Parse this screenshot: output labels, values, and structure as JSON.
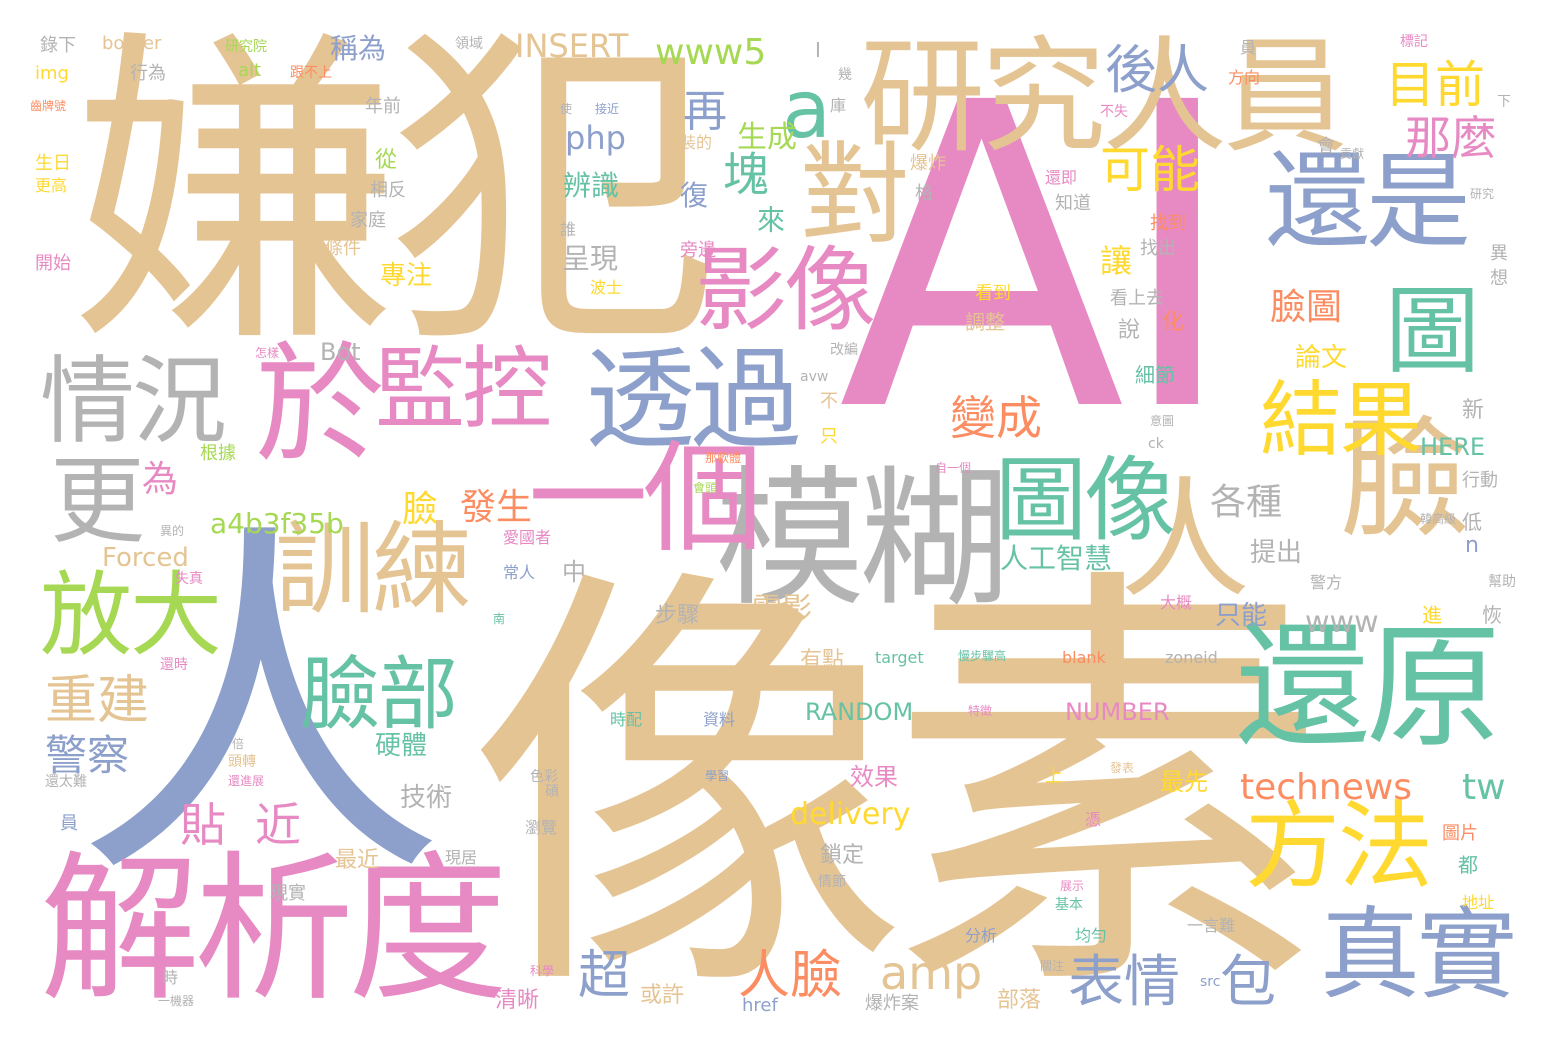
{
  "colors": {
    "background": "#ffffff",
    "tan": "#e5c494",
    "pink": "#e78ac3",
    "blue": "#8da0cb",
    "green": "#66c2a5",
    "lime": "#a6d854",
    "yellow": "#ffd92f",
    "orange": "#fc8d62",
    "gray": "#b3b3b3"
  },
  "words": [
    {
      "text": "AI"
    },
    {
      "text": "像素"
    },
    {
      "text": "嫌犯"
    },
    {
      "text": "人"
    },
    {
      "text": "解析度"
    },
    {
      "text": "研究人員"
    },
    {
      "text": "模糊"
    },
    {
      "text": "還原"
    },
    {
      "text": "於"
    },
    {
      "text": "透過"
    },
    {
      "text": "還是"
    },
    {
      "text": "監控"
    },
    {
      "text": "影像"
    },
    {
      "text": "對"
    },
    {
      "text": "臉"
    },
    {
      "text": "訓練"
    },
    {
      "text": "一個"
    },
    {
      "text": "圖像"
    },
    {
      "text": "人"
    },
    {
      "text": "方法"
    },
    {
      "text": "真實"
    },
    {
      "text": "放大"
    },
    {
      "text": "情況"
    },
    {
      "text": "更"
    },
    {
      "text": "圖"
    },
    {
      "text": "結果"
    },
    {
      "text": "臉部"
    },
    {
      "text": "a"
    },
    {
      "text": "後人"
    },
    {
      "text": "目前"
    },
    {
      "text": "可能"
    },
    {
      "text": "那麼"
    },
    {
      "text": "再"
    },
    {
      "text": "塊"
    },
    {
      "text": "變成"
    },
    {
      "text": "表情"
    },
    {
      "text": "包"
    },
    {
      "text": "人臉"
    },
    {
      "text": "amp"
    },
    {
      "text": "technews"
    },
    {
      "text": "tw"
    },
    {
      "text": "重建"
    },
    {
      "text": "警察"
    },
    {
      "text": "貼"
    },
    {
      "text": "近"
    },
    {
      "text": "超"
    },
    {
      "text": "發生"
    },
    {
      "text": "各種"
    },
    {
      "text": "臉圖"
    },
    {
      "text": "讓"
    },
    {
      "text": "www5"
    },
    {
      "text": "php"
    },
    {
      "text": "INSERT"
    },
    {
      "text": "www"
    },
    {
      "text": "a4b3f35b"
    },
    {
      "text": "人工智慧"
    },
    {
      "text": "delivery"
    },
    {
      "text": "為"
    },
    {
      "text": "臉"
    },
    {
      "text": "生成"
    },
    {
      "text": "辨識"
    },
    {
      "text": "來"
    },
    {
      "text": "復"
    },
    {
      "text": "電影"
    },
    {
      "text": "稱為"
    },
    {
      "text": "呈現"
    },
    {
      "text": "專注"
    },
    {
      "text": "論文"
    },
    {
      "text": "RANDOM"
    },
    {
      "text": "NUMBER"
    },
    {
      "text": "HERE"
    },
    {
      "text": "硬體"
    },
    {
      "text": "技術"
    },
    {
      "text": "cb"
    },
    {
      "text": "效果"
    },
    {
      "text": "最先"
    },
    {
      "text": "只能"
    },
    {
      "text": "提出"
    },
    {
      "text": "Forced"
    },
    {
      "text": "Bot"
    },
    {
      "text": "中"
    },
    {
      "text": "步驟"
    },
    {
      "text": "有點"
    },
    {
      "text": "鏡頭"
    },
    {
      "text": "或許"
    },
    {
      "text": "清晰"
    },
    {
      "text": "部落"
    },
    {
      "text": "最近"
    },
    {
      "text": "鎖定"
    },
    {
      "text": "一言難"
    },
    {
      "text": "圖片"
    },
    {
      "text": "都"
    },
    {
      "text": "化"
    },
    {
      "text": "細節"
    },
    {
      "text": "調整"
    },
    {
      "text": "看上去"
    },
    {
      "text": "說"
    },
    {
      "text": "看到"
    },
    {
      "text": "找到"
    },
    {
      "text": "找出"
    },
    {
      "text": "知道"
    },
    {
      "text": "還即"
    },
    {
      "text": "格"
    },
    {
      "text": "爆炸"
    },
    {
      "text": "旁邊"
    },
    {
      "text": "波士"
    },
    {
      "text": "誰"
    },
    {
      "text": "從"
    },
    {
      "text": "相反"
    },
    {
      "text": "家庭"
    },
    {
      "text": "條件"
    },
    {
      "text": "年前"
    },
    {
      "text": "行為"
    },
    {
      "text": "border"
    },
    {
      "text": "img"
    },
    {
      "text": "alt"
    },
    {
      "text": "研究院"
    },
    {
      "text": "跟不上"
    },
    {
      "text": "錄下"
    },
    {
      "text": "領域"
    },
    {
      "text": "生日"
    },
    {
      "text": "更高"
    },
    {
      "text": "開始"
    },
    {
      "text": "根據"
    },
    {
      "text": "時配"
    },
    {
      "text": "資料"
    },
    {
      "text": "target"
    },
    {
      "text": "blank"
    },
    {
      "text": "zoneid"
    },
    {
      "text": "分析"
    },
    {
      "text": "均勻"
    },
    {
      "text": "src"
    },
    {
      "text": "href"
    },
    {
      "text": "爆炸案"
    },
    {
      "text": "現實"
    },
    {
      "text": "情節"
    },
    {
      "text": "色彩"
    },
    {
      "text": "現居"
    },
    {
      "text": "avw"
    },
    {
      "text": "不"
    },
    {
      "text": "只"
    },
    {
      "text": "改編"
    },
    {
      "text": "不失"
    },
    {
      "text": "員"
    },
    {
      "text": "方向"
    },
    {
      "text": "標記"
    },
    {
      "text": "下"
    },
    {
      "text": "會"
    },
    {
      "text": "貢獻"
    },
    {
      "text": "研究"
    },
    {
      "text": "異"
    },
    {
      "text": "想"
    },
    {
      "text": "新"
    },
    {
      "text": "行動"
    },
    {
      "text": "低"
    },
    {
      "text": "恢"
    },
    {
      "text": "進"
    },
    {
      "text": "n"
    },
    {
      "text": "大概"
    },
    {
      "text": "警方"
    },
    {
      "text": "幫助"
    },
    {
      "text": "地址"
    },
    {
      "text": "展示"
    },
    {
      "text": "基本"
    },
    {
      "text": "關注"
    },
    {
      "text": "憑"
    },
    {
      "text": "發表"
    },
    {
      "text": "上"
    },
    {
      "text": "學習"
    },
    {
      "text": "ck"
    },
    {
      "text": "意圖"
    },
    {
      "text": "自一個"
    },
    {
      "text": "會頭"
    },
    {
      "text": "那軟體"
    },
    {
      "text": "愛國者"
    },
    {
      "text": "常人"
    },
    {
      "text": "失真"
    },
    {
      "text": "還時"
    },
    {
      "text": "南"
    },
    {
      "text": "瀏覽"
    },
    {
      "text": "碩"
    },
    {
      "text": "還太難"
    },
    {
      "text": "員"
    },
    {
      "text": "時"
    },
    {
      "text": "一機器"
    },
    {
      "text": "科學"
    },
    {
      "text": "裝的"
    },
    {
      "text": "使"
    },
    {
      "text": "接近"
    },
    {
      "text": "庫"
    },
    {
      "text": "幾"
    },
    {
      "text": "I"
    },
    {
      "text": "怎樣"
    },
    {
      "text": "頭轉"
    },
    {
      "text": "還進展"
    },
    {
      "text": "倍"
    },
    {
      "text": "特徵"
    },
    {
      "text": "慢步驟高"
    },
    {
      "text": "異的"
    },
    {
      "text": "韓高級"
    },
    {
      "text": "齒牌號"
    }
  ]
}
